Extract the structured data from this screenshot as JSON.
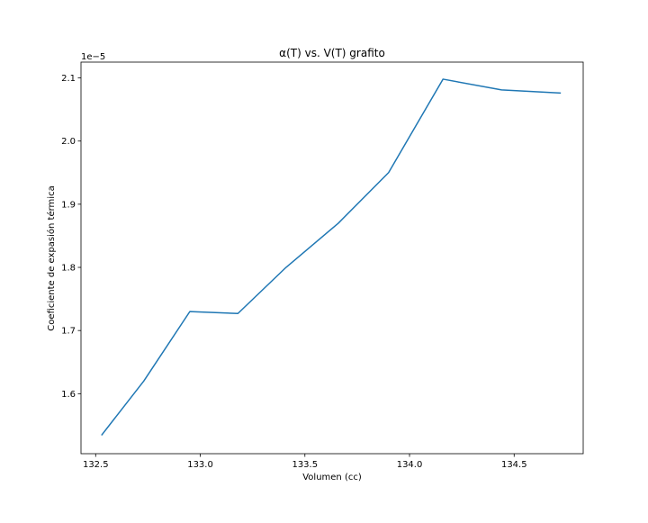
{
  "chart_data": {
    "type": "line",
    "title": "α(T) vs. V(T) grafito",
    "xlabel": "Volumen (cc)",
    "ylabel": "Coeficiente de expasión térmica",
    "y_offset_text": "1e−5",
    "y_scale_factor": 1e-05,
    "xlim": [
      132.43,
      134.83
    ],
    "ylim": [
      1.505,
      2.125
    ],
    "x_ticks": [
      132.5,
      133.0,
      133.5,
      134.0,
      134.5
    ],
    "x_tick_labels": [
      "132.5",
      "133.0",
      "133.5",
      "134.0",
      "134.5"
    ],
    "y_ticks": [
      1.6,
      1.7,
      1.8,
      1.9,
      2.0,
      2.1
    ],
    "y_tick_labels": [
      "1.6",
      "1.7",
      "1.8",
      "1.9",
      "2.0",
      "2.1"
    ],
    "grid": false,
    "legend": "none",
    "series": [
      {
        "color": "#1f77b4",
        "x": [
          132.53,
          132.73,
          132.95,
          133.18,
          133.41,
          133.66,
          133.9,
          134.16,
          134.44,
          134.72
        ],
        "y": [
          1.535,
          1.62,
          1.73,
          1.727,
          1.8,
          1.87,
          1.95,
          2.098,
          2.081,
          2.076
        ]
      }
    ]
  }
}
